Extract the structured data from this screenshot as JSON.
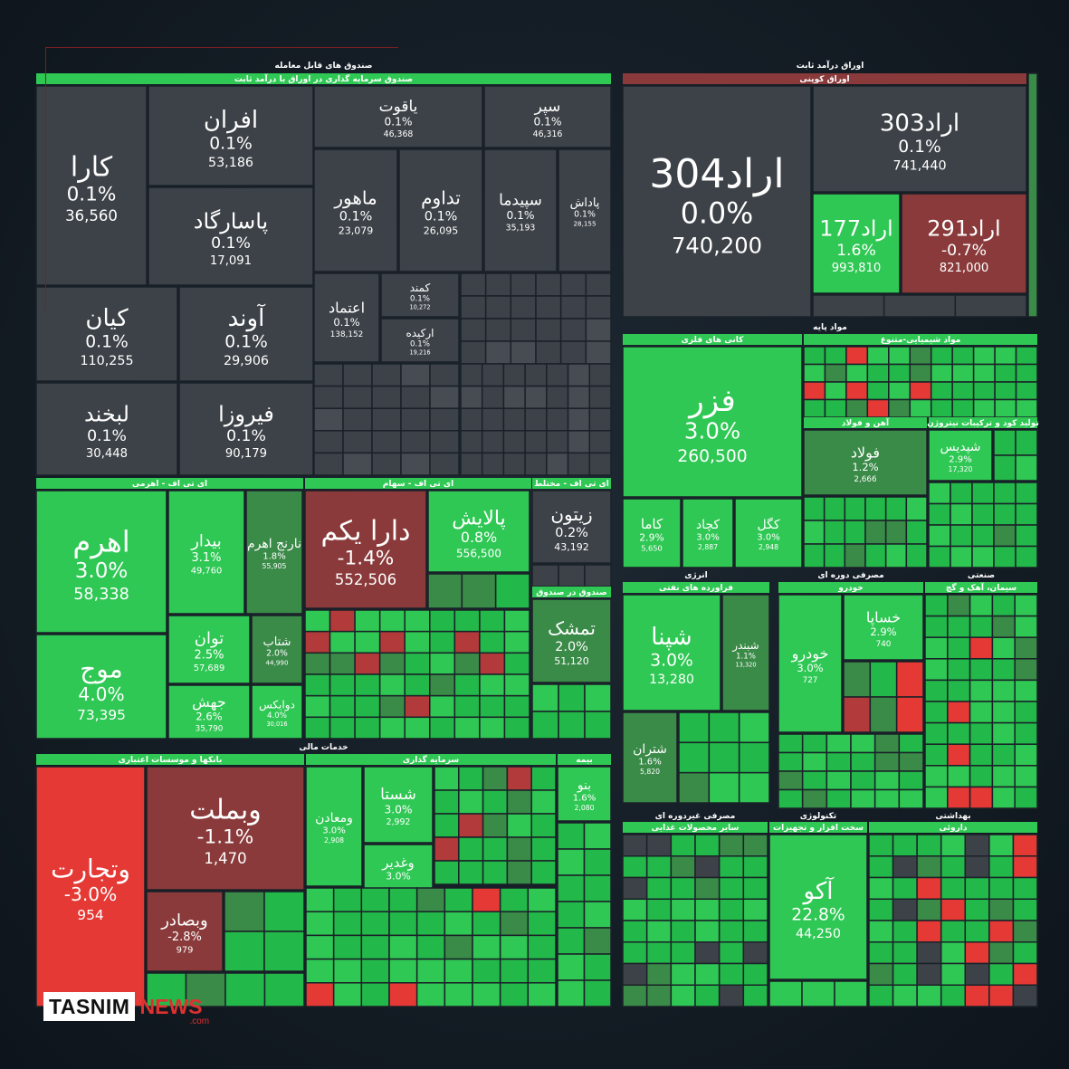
{
  "colors": {
    "dark": "#3d4248",
    "g1": "#22b84a",
    "g2": "#2fc854",
    "g3": "#3a8a48",
    "g4": "#4b6b50",
    "red": "#e53935",
    "red2": "#8a3a3a",
    "red3": "#b33a3a",
    "header": "#2fc854",
    "text": "#ffffff"
  },
  "sections": {
    "funds": "صندوق های قابل معامله",
    "fixed_income": "اوراق درآمد ثابت",
    "basic": "مواد پایه",
    "financial": "خدمات مالی",
    "energy": "انرژی",
    "durable": "مصرفی دوره ای",
    "industrial": "صنعتی",
    "nondurable": "مصرفی غیردوره ای",
    "technology": "تکنولوژی",
    "health": "بهداشتی"
  },
  "groups": {
    "fund_fixed": "صندوق سرمایه گذاری در اوراق با درآمد ثابت",
    "coupon": "اوراق کوپنی",
    "metals": "کانی های فلزی",
    "chemicals": "مواد شیمیایی-متنوع",
    "steel": "آهن و فولاد",
    "tire": "تولید کود و ترکیبات نیتروژن",
    "etf_leverage": "ای تی اف - اهرمی",
    "etf_stock": "ای تی اف - سهام",
    "etf_mixed": "ای تی اف - مختلط",
    "fund_in_fund": "صندوق در صندوق",
    "banks": "بانکها و موسسات اعتباری",
    "brokerage": "سرمایه گذاری",
    "insurance": "بیمه",
    "refinery": "فراورده های نفتی",
    "auto": "خودرو",
    "cement": "سیمان، آهک و گچ",
    "food": "سایر محصولات غذایی",
    "hardware": "سخت افزار و تجهیزات",
    "pharma": "داروئی"
  },
  "tiles": [
    {
      "name": "کارا",
      "pct": "0.1%",
      "val": "36,560"
    },
    {
      "name": "افران",
      "pct": "0.1%",
      "val": "53,186"
    },
    {
      "name": "پاسارگاد",
      "pct": "0.1%",
      "val": "17,091"
    },
    {
      "name": "یاقوت",
      "pct": "0.1%",
      "val": "46,368"
    },
    {
      "name": "سپر",
      "pct": "0.1%",
      "val": "46,316"
    },
    {
      "name": "ماهور",
      "pct": "0.1%",
      "val": "23,079"
    },
    {
      "name": "تداوم",
      "pct": "0.1%",
      "val": "26,095"
    },
    {
      "name": "سپیدما",
      "pct": "0.1%",
      "val": "35,193"
    },
    {
      "name": "پاداش",
      "pct": "0.1%",
      "val": "28,155"
    },
    {
      "name": "کیان",
      "pct": "0.1%",
      "val": "110,255"
    },
    {
      "name": "آوند",
      "pct": "0.1%",
      "val": "29,906"
    },
    {
      "name": "اعتماد",
      "pct": "0.1%",
      "val": "138,152"
    },
    {
      "name": "کمند",
      "pct": "0.1%",
      "val": "10,272"
    },
    {
      "name": "ارکیده",
      "pct": "0.1%",
      "val": "19,216"
    },
    {
      "name": "لبخند",
      "pct": "0.1%",
      "val": "30,448"
    },
    {
      "name": "فیروزا",
      "pct": "0.1%",
      "val": "90,179"
    },
    {
      "name": "اراد304",
      "pct": "0.0%",
      "val": "740,200"
    },
    {
      "name": "اراد303",
      "pct": "0.1%",
      "val": "741,440"
    },
    {
      "name": "اراد177",
      "pct": "1.6%",
      "val": "993,810"
    },
    {
      "name": "اراد291",
      "pct": "-0.7%",
      "val": "821,000"
    },
    {
      "name": "فزر",
      "pct": "3.0%",
      "val": "260,500"
    },
    {
      "name": "فولاد",
      "pct": "1.2%",
      "val": "2,666"
    },
    {
      "name": "شپدیس",
      "pct": "2.9%",
      "val": "17,320"
    },
    {
      "name": "کاما",
      "pct": "2.9%",
      "val": "5,650"
    },
    {
      "name": "کچاد",
      "pct": "3.0%",
      "val": "2,887"
    },
    {
      "name": "کگل",
      "pct": "3.0%",
      "val": "2,948"
    },
    {
      "name": "اهرم",
      "pct": "3.0%",
      "val": "58,338"
    },
    {
      "name": "بیدار",
      "pct": "3.1%",
      "val": "49,760"
    },
    {
      "name": "نارنج اهرم",
      "pct": "1.8%",
      "val": "55,905"
    },
    {
      "name": "دارا یکم",
      "pct": "-1.4%",
      "val": "552,506"
    },
    {
      "name": "پالایش",
      "pct": "0.8%",
      "val": "556,500"
    },
    {
      "name": "زیتون",
      "pct": "0.2%",
      "val": "43,192"
    },
    {
      "name": "تمشک",
      "pct": "2.0%",
      "val": "51,120"
    },
    {
      "name": "موج",
      "pct": "4.0%",
      "val": "73,395"
    },
    {
      "name": "توان",
      "pct": "2.5%",
      "val": "57,689"
    },
    {
      "name": "شتاب",
      "pct": "2.0%",
      "val": "44,990"
    },
    {
      "name": "جهش",
      "pct": "2.6%",
      "val": "35,790"
    },
    {
      "name": "دوایکس",
      "pct": "4.0%",
      "val": "30,016"
    },
    {
      "name": "شپنا",
      "pct": "3.0%",
      "val": "13,280"
    },
    {
      "name": "شبندر",
      "pct": "1.1%",
      "val": "13,320"
    },
    {
      "name": "شتران",
      "pct": "1.6%",
      "val": "5,820"
    },
    {
      "name": "خساپا",
      "pct": "2.9%",
      "val": "740"
    },
    {
      "name": "خودرو",
      "pct": "3.0%",
      "val": "727"
    },
    {
      "name": "وتجارت",
      "pct": "-3.0%",
      "val": "954"
    },
    {
      "name": "وبملت",
      "pct": "-1.1%",
      "val": "1,470"
    },
    {
      "name": "وبصادر",
      "pct": "-2.8%",
      "val": "979"
    },
    {
      "name": "شستا",
      "pct": "3.0%",
      "val": "2,992"
    },
    {
      "name": "ومعادن",
      "pct": "3.0%",
      "val": "2,908"
    },
    {
      "name": "وغدیر",
      "pct": "3.0%",
      "val": ""
    },
    {
      "name": "بنو",
      "pct": "1.6%",
      "val": "2,080"
    },
    {
      "name": "آکو",
      "pct": "22.8%",
      "val": "44,250"
    }
  ],
  "logo": {
    "part1": "TASNIM",
    "part2": "NEWS",
    "part3": ".com"
  }
}
